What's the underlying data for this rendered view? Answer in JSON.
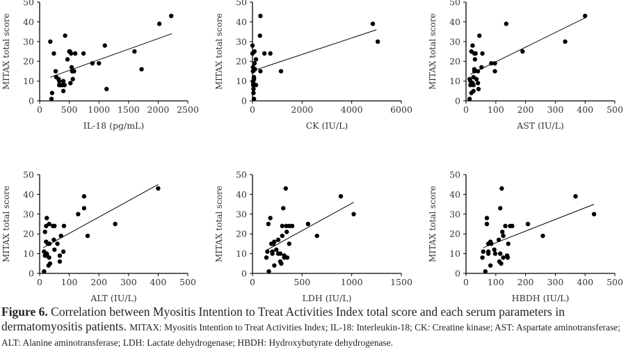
{
  "caption": {
    "label": "Figure 6.",
    "text": "Correlation between Myositis Intention to Treat Activities Index total score and each serum parameters in dermatomyositis patients.",
    "abbreviations": "MITAX: Myositis Intention to Treat Activities Index; IL-18: Interleukin-18; CK: Creatine kinase; AST: Aspartate aminotransferase; ALT: Alanine aminotransferase; LDH: Lactate dehydrogenase; HBDH: Hydroxybutyrate dehydrogenase."
  },
  "chart_data": [
    {
      "type": "scatter",
      "xlabel": "IL-18 (pg/mL)",
      "ylabel": "MITAX total score",
      "xlim": [
        0,
        2500
      ],
      "ylim": [
        0,
        50
      ],
      "xticks": [
        0,
        500,
        1000,
        1500,
        2000,
        2500
      ],
      "yticks": [
        0,
        10,
        20,
        30,
        40,
        50
      ],
      "points": [
        [
          180,
          30
        ],
        [
          200,
          1
        ],
        [
          210,
          4
        ],
        [
          240,
          24
        ],
        [
          270,
          15
        ],
        [
          280,
          12
        ],
        [
          320,
          11
        ],
        [
          330,
          10
        ],
        [
          330,
          8
        ],
        [
          350,
          8
        ],
        [
          380,
          8
        ],
        [
          400,
          10
        ],
        [
          400,
          5
        ],
        [
          420,
          8
        ],
        [
          430,
          33
        ],
        [
          470,
          21
        ],
        [
          500,
          25
        ],
        [
          510,
          25
        ],
        [
          530,
          24
        ],
        [
          520,
          9
        ],
        [
          540,
          17
        ],
        [
          550,
          15
        ],
        [
          560,
          11
        ],
        [
          580,
          15
        ],
        [
          600,
          24
        ],
        [
          740,
          24
        ],
        [
          890,
          19
        ],
        [
          1000,
          19
        ],
        [
          1100,
          28
        ],
        [
          1130,
          6
        ],
        [
          1600,
          25
        ],
        [
          1720,
          16
        ],
        [
          2020,
          39
        ],
        [
          2220,
          43
        ]
      ],
      "trendline": [
        [
          180,
          12
        ],
        [
          2230,
          34
        ]
      ],
      "color": "#000000"
    },
    {
      "type": "scatter",
      "xlabel": "CK (IU/L)",
      "ylabel": "MITAX total score",
      "xlim": [
        0,
        6000
      ],
      "ylim": [
        0,
        50
      ],
      "xticks": [
        0,
        2000,
        4000,
        6000
      ],
      "yticks": [
        0,
        10,
        20,
        30,
        40,
        50
      ],
      "points": [
        [
          0,
          28
        ],
        [
          0,
          24
        ],
        [
          20,
          17
        ],
        [
          20,
          15
        ],
        [
          30,
          10
        ],
        [
          30,
          9
        ],
        [
          30,
          8
        ],
        [
          40,
          6
        ],
        [
          40,
          4
        ],
        [
          60,
          12
        ],
        [
          60,
          11
        ],
        [
          60,
          1
        ],
        [
          80,
          25
        ],
        [
          80,
          19
        ],
        [
          100,
          16
        ],
        [
          140,
          21
        ],
        [
          140,
          8
        ],
        [
          300,
          33
        ],
        [
          320,
          43
        ],
        [
          320,
          15
        ],
        [
          480,
          24
        ],
        [
          720,
          24
        ],
        [
          1150,
          15
        ],
        [
          4850,
          39
        ],
        [
          5050,
          30
        ]
      ],
      "trendline": [
        [
          200,
          16
        ],
        [
          5000,
          36
        ]
      ],
      "color": "#000000"
    },
    {
      "type": "scatter",
      "xlabel": "AST (IU/L)",
      "ylabel": "MITAX total score",
      "xlim": [
        0,
        500
      ],
      "ylim": [
        0,
        50
      ],
      "xticks": [
        0,
        100,
        200,
        300,
        400,
        500
      ],
      "yticks": [
        0,
        10,
        20,
        30,
        40,
        50
      ],
      "points": [
        [
          12,
          1
        ],
        [
          12,
          11
        ],
        [
          15,
          10
        ],
        [
          15,
          8
        ],
        [
          18,
          25
        ],
        [
          18,
          4
        ],
        [
          22,
          28
        ],
        [
          22,
          9
        ],
        [
          25,
          12
        ],
        [
          25,
          5
        ],
        [
          25,
          8
        ],
        [
          28,
          24
        ],
        [
          28,
          16
        ],
        [
          28,
          15
        ],
        [
          30,
          21
        ],
        [
          32,
          24
        ],
        [
          35,
          11
        ],
        [
          40,
          15
        ],
        [
          40,
          9
        ],
        [
          42,
          6
        ],
        [
          45,
          33
        ],
        [
          52,
          17
        ],
        [
          55,
          24
        ],
        [
          85,
          19
        ],
        [
          97,
          19
        ],
        [
          97,
          15
        ],
        [
          135,
          39
        ],
        [
          190,
          25
        ],
        [
          333,
          30
        ],
        [
          400,
          43
        ]
      ],
      "trendline": [
        [
          15,
          13.5
        ],
        [
          400,
          42
        ]
      ],
      "color": "#000000"
    },
    {
      "type": "scatter",
      "xlabel": "ALT (IU/L)",
      "ylabel": "MITAX total score",
      "xlim": [
        0,
        500
      ],
      "ylim": [
        0,
        50
      ],
      "xticks": [
        0,
        100,
        200,
        300,
        400,
        500
      ],
      "yticks": [
        0,
        10,
        20,
        30,
        40,
        50
      ],
      "points": [
        [
          15,
          1
        ],
        [
          15,
          11
        ],
        [
          18,
          9
        ],
        [
          18,
          21
        ],
        [
          22,
          16
        ],
        [
          22,
          24
        ],
        [
          24,
          28
        ],
        [
          24,
          10
        ],
        [
          25,
          9
        ],
        [
          28,
          15
        ],
        [
          30,
          4
        ],
        [
          32,
          25
        ],
        [
          32,
          8
        ],
        [
          33,
          15
        ],
        [
          35,
          5
        ],
        [
          45,
          24
        ],
        [
          48,
          17
        ],
        [
          50,
          12
        ],
        [
          50,
          24
        ],
        [
          60,
          15
        ],
        [
          68,
          9
        ],
        [
          68,
          6
        ],
        [
          72,
          19
        ],
        [
          80,
          11
        ],
        [
          82,
          24
        ],
        [
          130,
          30
        ],
        [
          150,
          39
        ],
        [
          150,
          33
        ],
        [
          162,
          19
        ],
        [
          255,
          25
        ],
        [
          400,
          43
        ]
      ],
      "trendline": [
        [
          12,
          13
        ],
        [
          400,
          45
        ]
      ],
      "color": "#000000"
    },
    {
      "type": "scatter",
      "xlabel": "LDH (IU/L)",
      "ylabel": "MITAX total score",
      "xlim": [
        0,
        1500
      ],
      "ylim": [
        0,
        50
      ],
      "xticks": [
        0,
        500,
        1000,
        1500
      ],
      "yticks": [
        0,
        10,
        20,
        30,
        40,
        50
      ],
      "points": [
        [
          140,
          8
        ],
        [
          150,
          11
        ],
        [
          160,
          25
        ],
        [
          165,
          1
        ],
        [
          180,
          28
        ],
        [
          190,
          15
        ],
        [
          200,
          10
        ],
        [
          200,
          11
        ],
        [
          210,
          15
        ],
        [
          220,
          4
        ],
        [
          220,
          16
        ],
        [
          240,
          12
        ],
        [
          260,
          17
        ],
        [
          260,
          10
        ],
        [
          280,
          10
        ],
        [
          280,
          6
        ],
        [
          290,
          5
        ],
        [
          300,
          24
        ],
        [
          300,
          19
        ],
        [
          310,
          33
        ],
        [
          320,
          9
        ],
        [
          320,
          8
        ],
        [
          335,
          43
        ],
        [
          345,
          21
        ],
        [
          340,
          24
        ],
        [
          350,
          8
        ],
        [
          370,
          15
        ],
        [
          370,
          24
        ],
        [
          400,
          24
        ],
        [
          560,
          25
        ],
        [
          650,
          19
        ],
        [
          890,
          39
        ],
        [
          1020,
          30
        ]
      ],
      "trendline": [
        [
          150,
          12
        ],
        [
          1020,
          36
        ]
      ],
      "color": "#000000"
    },
    {
      "type": "scatter",
      "xlabel": "HBDH (IU/L)",
      "ylabel": "MITAX total score",
      "xlim": [
        0,
        500
      ],
      "ylim": [
        0,
        50
      ],
      "xticks": [
        0,
        100,
        200,
        300,
        400,
        500
      ],
      "yticks": [
        0,
        10,
        20,
        30,
        40,
        50
      ],
      "points": [
        [
          55,
          8
        ],
        [
          58,
          11
        ],
        [
          65,
          1
        ],
        [
          70,
          28
        ],
        [
          70,
          25
        ],
        [
          75,
          15
        ],
        [
          75,
          11
        ],
        [
          75,
          10
        ],
        [
          82,
          4
        ],
        [
          82,
          16
        ],
        [
          85,
          15
        ],
        [
          95,
          12
        ],
        [
          98,
          10
        ],
        [
          110,
          17
        ],
        [
          112,
          6
        ],
        [
          115,
          10
        ],
        [
          115,
          33
        ],
        [
          118,
          5
        ],
        [
          120,
          43
        ],
        [
          122,
          21
        ],
        [
          125,
          8
        ],
        [
          125,
          19
        ],
        [
          132,
          24
        ],
        [
          138,
          9
        ],
        [
          140,
          8
        ],
        [
          142,
          15
        ],
        [
          148,
          24
        ],
        [
          155,
          24
        ],
        [
          208,
          25
        ],
        [
          258,
          19
        ],
        [
          368,
          39
        ],
        [
          430,
          30
        ]
      ],
      "trendline": [
        [
          58,
          13
        ],
        [
          430,
          35
        ]
      ],
      "color": "#000000"
    }
  ]
}
